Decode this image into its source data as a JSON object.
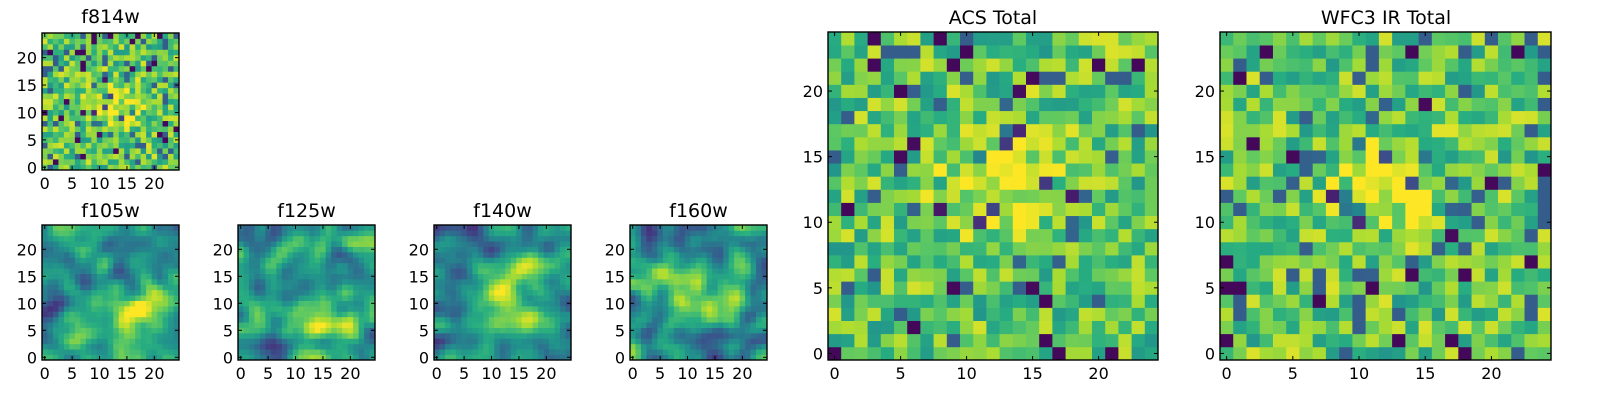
{
  "chart_data": [
    {
      "id": "f814w",
      "type": "heatmap",
      "title": "f814w",
      "xlabel": "",
      "ylabel": "",
      "grid_size": 25,
      "xlim": [
        -0.5,
        24.5
      ],
      "ylim": [
        -0.5,
        24.5
      ],
      "xticks": [
        0,
        5,
        10,
        15,
        20
      ],
      "yticks": [
        0,
        5,
        10,
        15,
        20
      ],
      "colormap": "viridis",
      "seed": 814,
      "style": "noisy",
      "blob": {
        "x": 13,
        "y": 11,
        "sigma": 3.0,
        "amp": 0.25
      },
      "value_range": [
        0,
        1
      ]
    },
    {
      "id": "f105w",
      "type": "heatmap",
      "title": "f105w",
      "xlabel": "",
      "ylabel": "",
      "grid_size": 25,
      "xlim": [
        -0.5,
        24.5
      ],
      "ylim": [
        -0.5,
        24.5
      ],
      "xticks": [
        0,
        5,
        10,
        15,
        20
      ],
      "yticks": [
        0,
        5,
        10,
        15,
        20
      ],
      "colormap": "viridis",
      "seed": 105,
      "style": "smooth",
      "blob": {
        "x": 16,
        "y": 7,
        "sigma": 3.2,
        "amp": 0.45
      },
      "value_range": [
        0,
        1
      ]
    },
    {
      "id": "f125w",
      "type": "heatmap",
      "title": "f125w",
      "xlabel": "",
      "ylabel": "",
      "grid_size": 25,
      "xlim": [
        -0.5,
        24.5
      ],
      "ylim": [
        -0.5,
        24.5
      ],
      "xticks": [
        0,
        5,
        10,
        15,
        20
      ],
      "yticks": [
        0,
        5,
        10,
        15,
        20
      ],
      "colormap": "viridis",
      "seed": 125,
      "style": "smooth",
      "blob": {
        "x": 14,
        "y": 7,
        "sigma": 4.0,
        "amp": 0.35
      },
      "value_range": [
        0,
        1
      ]
    },
    {
      "id": "f140w",
      "type": "heatmap",
      "title": "f140w",
      "xlabel": "",
      "ylabel": "",
      "grid_size": 25,
      "xlim": [
        -0.5,
        24.5
      ],
      "ylim": [
        -0.5,
        24.5
      ],
      "xticks": [
        0,
        5,
        10,
        15,
        20
      ],
      "yticks": [
        0,
        5,
        10,
        15,
        20
      ],
      "colormap": "viridis",
      "seed": 140,
      "style": "smooth",
      "blob": {
        "x": 12,
        "y": 11,
        "sigma": 4.5,
        "amp": 0.45
      },
      "value_range": [
        0,
        1
      ]
    },
    {
      "id": "f160w",
      "type": "heatmap",
      "title": "f160w",
      "xlabel": "",
      "ylabel": "",
      "grid_size": 25,
      "xlim": [
        -0.5,
        24.5
      ],
      "ylim": [
        -0.5,
        24.5
      ],
      "xticks": [
        0,
        5,
        10,
        15,
        20
      ],
      "yticks": [
        0,
        5,
        10,
        15,
        20
      ],
      "colormap": "viridis",
      "seed": 160,
      "style": "smooth",
      "blob": {
        "x": 11,
        "y": 11,
        "sigma": 4.0,
        "amp": 0.55
      },
      "value_range": [
        0,
        1
      ]
    },
    {
      "id": "acs-total",
      "type": "heatmap",
      "title": "ACS Total",
      "xlabel": "",
      "ylabel": "",
      "grid_size": 25,
      "xlim": [
        -0.5,
        24.5
      ],
      "ylim": [
        -0.5,
        24.5
      ],
      "xticks": [
        0,
        5,
        10,
        15,
        20
      ],
      "yticks": [
        0,
        5,
        10,
        15,
        20
      ],
      "colormap": "viridis",
      "seed": 2021,
      "style": "noisy",
      "blob": {
        "x": 13,
        "y": 13,
        "sigma": 3.0,
        "amp": 0.25
      },
      "value_range": [
        0,
        1
      ]
    },
    {
      "id": "wfc3-ir-total",
      "type": "heatmap",
      "title": "WFC3 IR Total",
      "xlabel": "",
      "ylabel": "",
      "grid_size": 25,
      "xlim": [
        -0.5,
        24.5
      ],
      "ylim": [
        -0.5,
        24.5
      ],
      "xticks": [
        0,
        5,
        10,
        15,
        20
      ],
      "yticks": [
        0,
        5,
        10,
        15,
        20
      ],
      "colormap": "viridis",
      "seed": 3003,
      "style": "noisy",
      "blob": {
        "x": 12,
        "y": 13,
        "sigma": 2.5,
        "amp": 0.3
      },
      "value_range": [
        0,
        1
      ]
    }
  ]
}
